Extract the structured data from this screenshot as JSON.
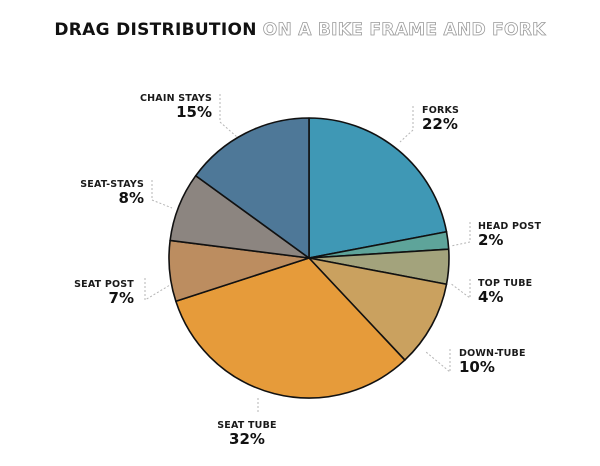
{
  "chart_data": {
    "type": "pie",
    "title": "DRAG DISTRIBUTION",
    "subtitle": "ON A BIKE FRAME AND FORK",
    "slices": [
      {
        "label": "FORKS",
        "value": 22,
        "value_text": "22%",
        "color": "#3f98b5"
      },
      {
        "label": "HEAD POST",
        "value": 2,
        "value_text": "2%",
        "color": "#5ea49a"
      },
      {
        "label": "TOP TUBE",
        "value": 4,
        "value_text": "4%",
        "color": "#a3a37c"
      },
      {
        "label": "DOWN-TUBE",
        "value": 10,
        "value_text": "10%",
        "color": "#caa15f"
      },
      {
        "label": "SEAT TUBE",
        "value": 32,
        "value_text": "32%",
        "color": "#e69b3a"
      },
      {
        "label": "SEAT POST",
        "value": 7,
        "value_text": "7%",
        "color": "#bc8d60"
      },
      {
        "label": "SEAT-STAYS",
        "value": 8,
        "value_text": "8%",
        "color": "#8c8580"
      },
      {
        "label": "CHAIN STAYS",
        "value": 15,
        "value_text": "15%",
        "color": "#4e7898"
      }
    ]
  }
}
